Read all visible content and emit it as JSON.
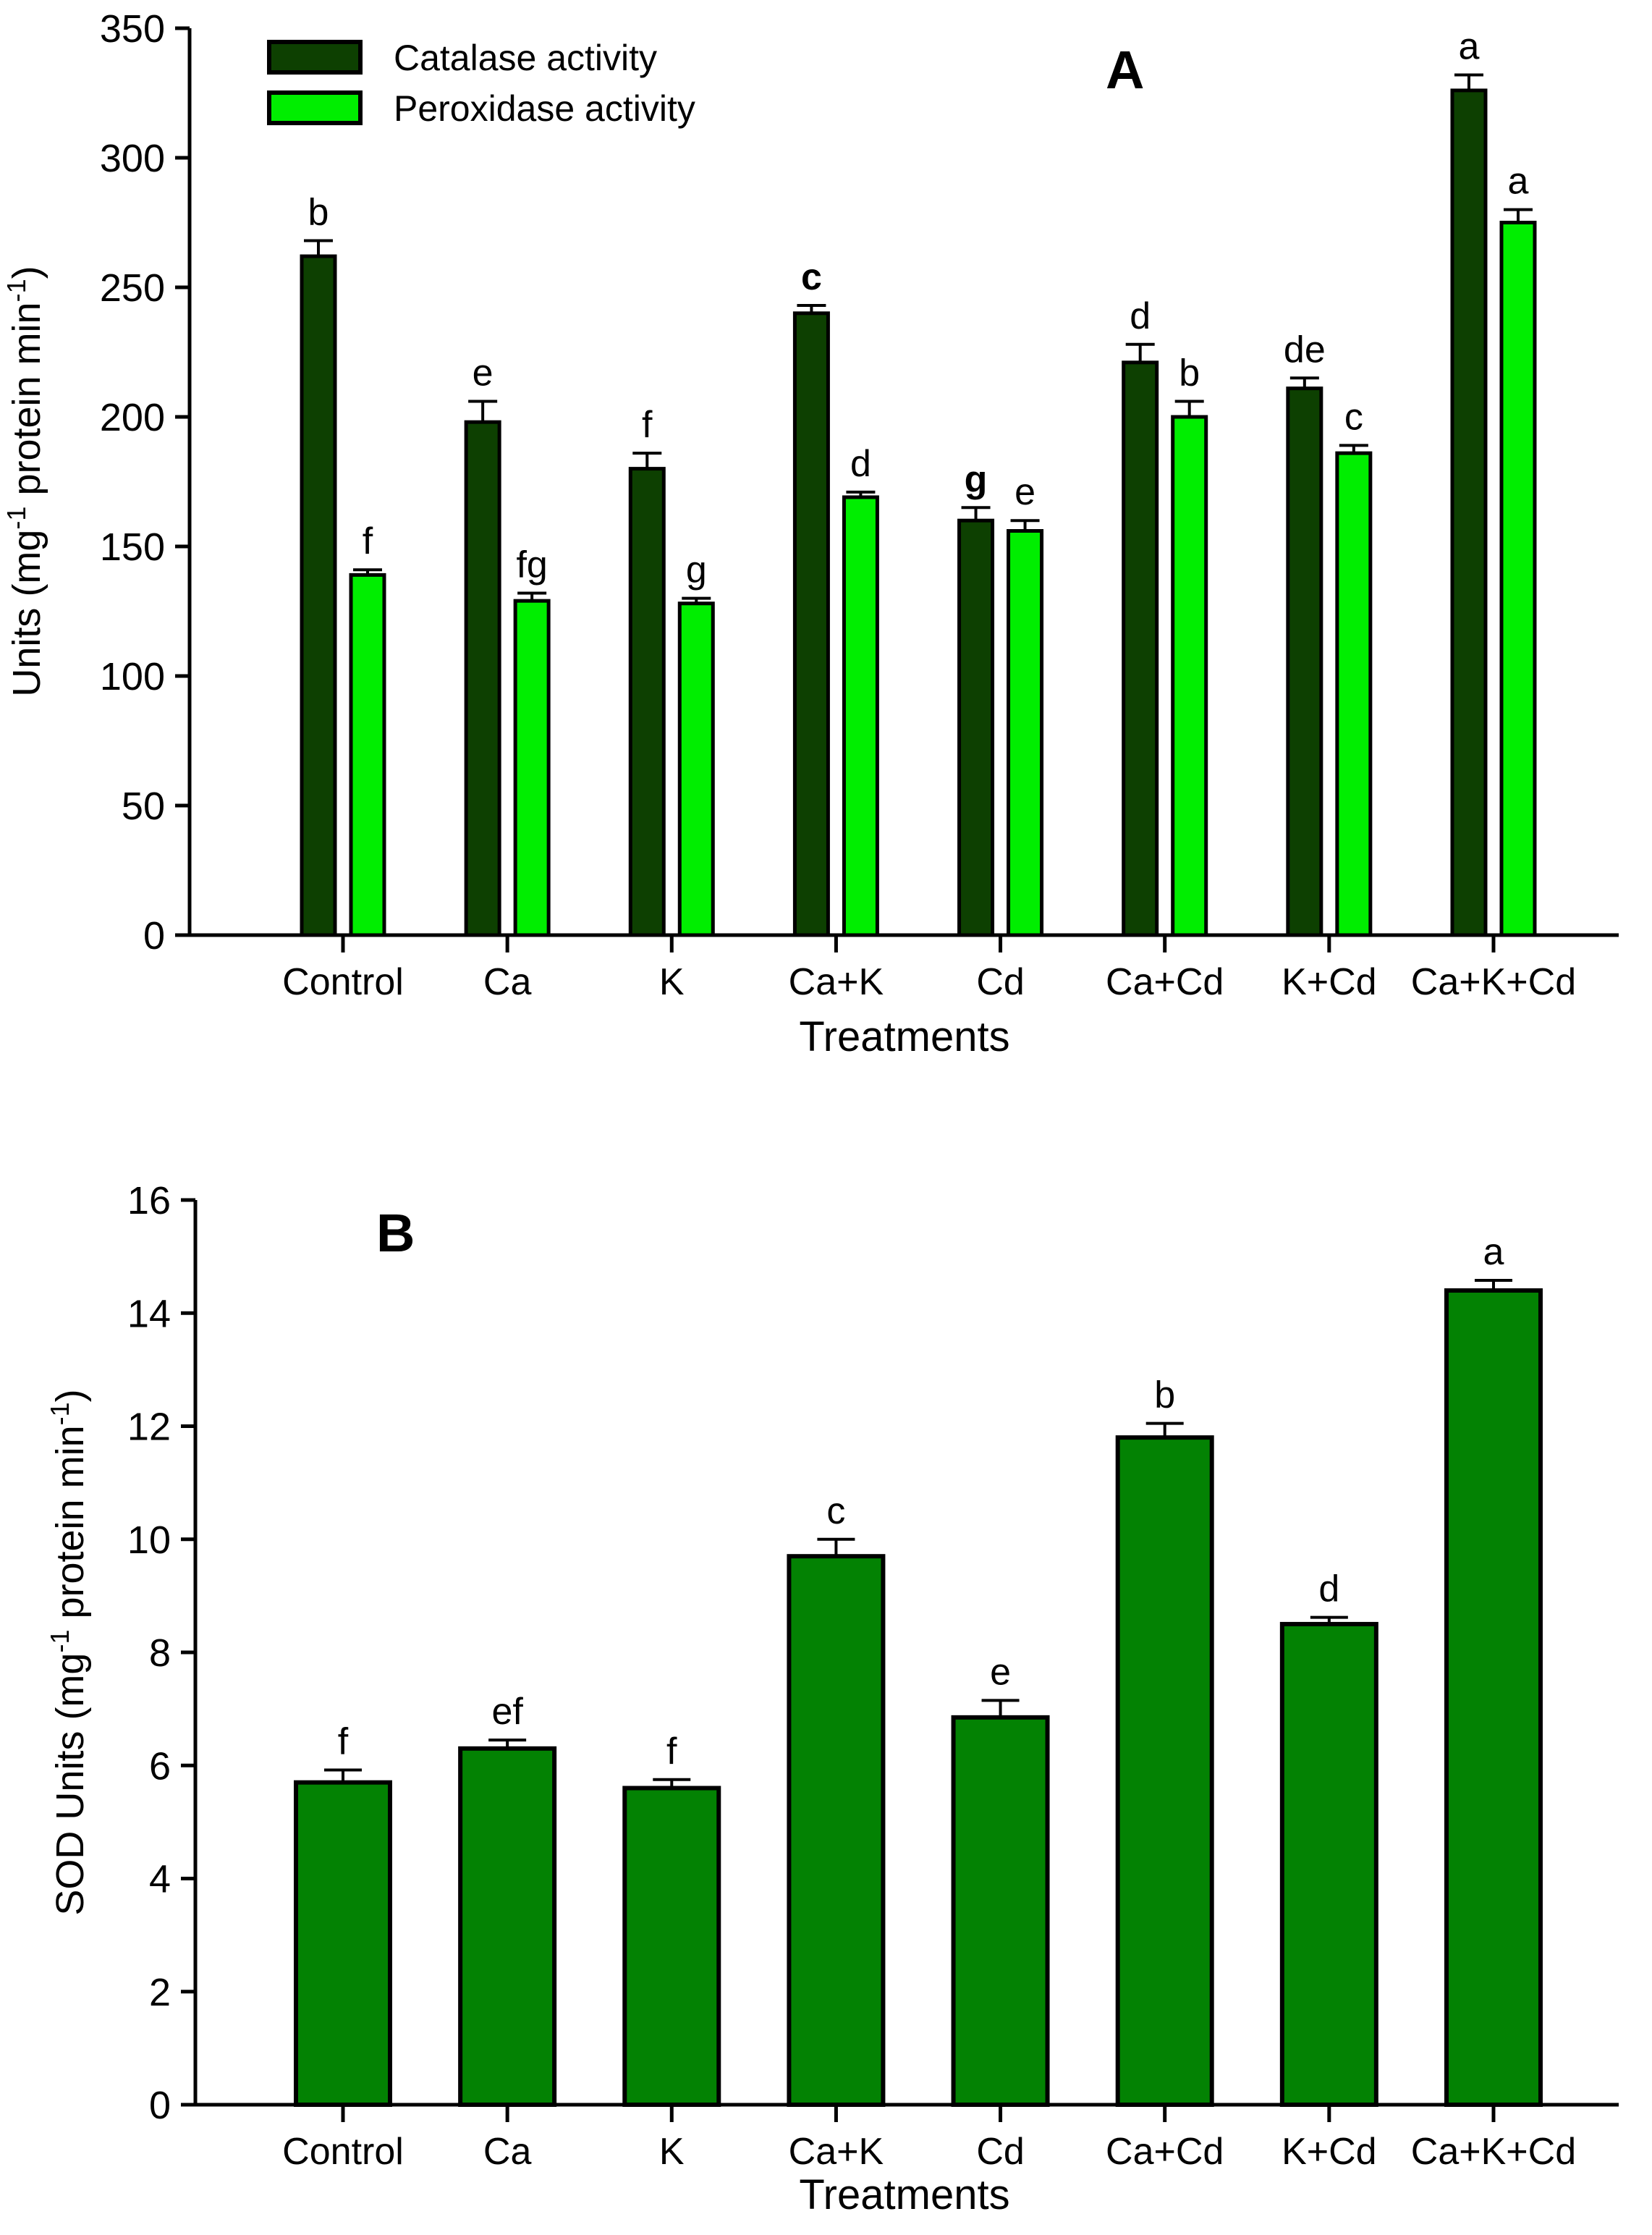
{
  "figure": {
    "panel_a_label": "A",
    "panel_b_label": "B",
    "xlabel": "Treatments",
    "categories": [
      "Control",
      "Ca",
      "K",
      "Ca+K",
      "Cd",
      "Ca+Cd",
      "K+Cd",
      "Ca+K+Cd"
    ]
  },
  "chart_data": [
    {
      "type": "bar",
      "panel": "A",
      "panel_label": "A",
      "xlabel": "Treatments",
      "ylabel_parts": [
        {
          "t": "Units (mg"
        },
        {
          "t": "-1",
          "sup": true
        },
        {
          "t": " protein min"
        },
        {
          "t": "-1",
          "sup": true
        },
        {
          "t": ")"
        }
      ],
      "ylim": [
        0,
        350
      ],
      "ytick_step": 50,
      "grid": false,
      "legend_position": "top-left",
      "categories": [
        "Control",
        "Ca",
        "K",
        "Ca+K",
        "Cd",
        "Ca+Cd",
        "K+Cd",
        "Ca+K+Cd"
      ],
      "series": [
        {
          "name": "Catalase activity",
          "color": "#0d4001",
          "values": [
            262,
            198,
            180,
            240,
            160,
            221,
            211,
            326
          ],
          "errors": [
            6,
            8,
            6,
            3,
            5,
            7,
            4,
            6
          ],
          "letters": [
            "b",
            "e",
            "f",
            "c",
            "g",
            "d",
            "de",
            "a"
          ],
          "letters_bold": [
            false,
            false,
            false,
            true,
            true,
            false,
            false,
            false
          ]
        },
        {
          "name": "Peroxidase activity",
          "color": "#00ee00",
          "values": [
            139,
            129,
            128,
            169,
            156,
            200,
            186,
            275
          ],
          "errors": [
            2,
            3,
            2,
            2,
            4,
            6,
            3,
            5
          ],
          "letters": [
            "f",
            "fg",
            "g",
            "d",
            "e",
            "b",
            "c",
            "a"
          ],
          "letters_bold": [
            false,
            false,
            false,
            false,
            false,
            false,
            false,
            false
          ]
        }
      ]
    },
    {
      "type": "bar",
      "panel": "B",
      "panel_label": "B",
      "xlabel": "Treatments",
      "ylabel_parts": [
        {
          "t": "SOD Units (mg"
        },
        {
          "t": "-1",
          "sup": true
        },
        {
          "t": " protein min"
        },
        {
          "t": "-1",
          "sup": true
        },
        {
          "t": ")"
        }
      ],
      "ylim": [
        0,
        16
      ],
      "ytick_step": 2,
      "grid": false,
      "legend_position": "none",
      "categories": [
        "Control",
        "Ca",
        "K",
        "Ca+K",
        "Cd",
        "Ca+Cd",
        "K+Cd",
        "Ca+K+Cd"
      ],
      "series": [
        {
          "name": "SOD",
          "color": "#038203",
          "values": [
            5.7,
            6.3,
            5.6,
            9.7,
            6.85,
            11.8,
            8.5,
            14.4
          ],
          "errors": [
            0.22,
            0.15,
            0.15,
            0.3,
            0.3,
            0.25,
            0.12,
            0.18
          ],
          "letters": [
            "f",
            "ef",
            "f",
            "c",
            "e",
            "b",
            "d",
            "a"
          ],
          "letters_bold": [
            false,
            false,
            false,
            false,
            false,
            false,
            false,
            false
          ]
        }
      ]
    }
  ]
}
